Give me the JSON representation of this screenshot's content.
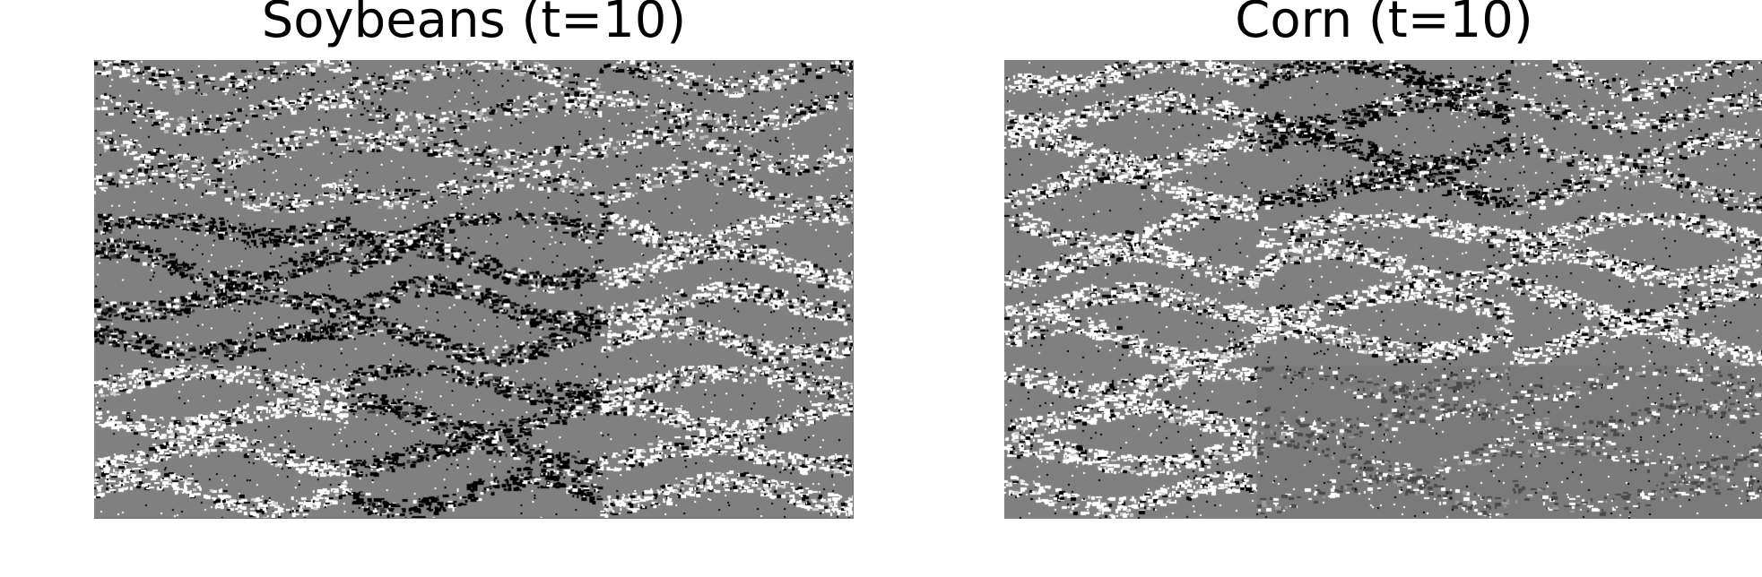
{
  "panels": [
    {
      "title": "Soybeans (t=10)",
      "seed": 17,
      "base_color": "#808080",
      "tile_tints": [
        [
          "none",
          "none",
          "none"
        ],
        [
          "dark",
          "dark",
          "light"
        ],
        [
          "light",
          "dark",
          "light"
        ]
      ]
    },
    {
      "title": "Corn (t=10)",
      "seed": 53,
      "base_color": "#808080",
      "tile_tints": [
        [
          "light",
          "dark",
          "none"
        ],
        [
          "light",
          "light",
          "light"
        ],
        [
          "light",
          "muted",
          "muted"
        ]
      ]
    }
  ]
}
